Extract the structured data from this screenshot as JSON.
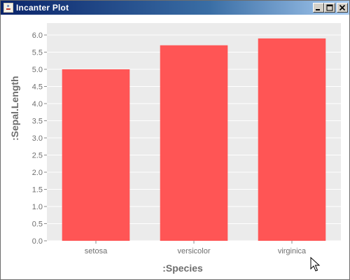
{
  "window": {
    "title": "Incanter Plot",
    "app_icon": "java-cup-icon",
    "buttons": [
      "minimize-icon",
      "maximize-icon",
      "close-icon"
    ]
  },
  "chart_data": {
    "type": "bar",
    "title": "",
    "xlabel": ":Species",
    "ylabel": ":Sepal.Length",
    "categories": [
      "setosa",
      "versicolor",
      "virginica"
    ],
    "values": [
      5.0,
      5.7,
      5.9
    ],
    "ylim": [
      0.0,
      6.0
    ],
    "yticks": [
      "0.0",
      "0.5",
      "1.0",
      "1.5",
      "2.0",
      "2.5",
      "3.0",
      "3.5",
      "4.0",
      "4.5",
      "5.0",
      "5.5",
      "6.0"
    ],
    "grid": true,
    "bar_color": "#ff5555",
    "plot_background": "#ebebeb",
    "grid_color": "#ffffff"
  }
}
